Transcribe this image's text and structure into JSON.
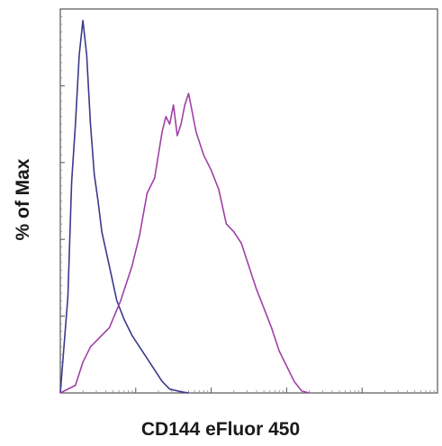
{
  "chart_data": {
    "type": "line",
    "title": "",
    "xlabel": "CD144 eFluor 450",
    "ylabel": "% of Max",
    "x_scale": "log",
    "xlim": [
      0,
      1
    ],
    "ylim": [
      0,
      100
    ],
    "grid": false,
    "legend": "none",
    "series": [
      {
        "color": "#3a3a8c",
        "x": [
          0.0,
          0.02,
          0.03,
          0.04,
          0.05,
          0.06,
          0.07,
          0.08,
          0.09,
          0.1,
          0.11,
          0.13,
          0.15,
          0.17,
          0.19,
          0.21,
          0.23,
          0.25,
          0.27,
          0.29,
          0.32,
          0.34
        ],
        "y": [
          0,
          25,
          55,
          70,
          88,
          97,
          88,
          70,
          57,
          50,
          42,
          33,
          24,
          19,
          15,
          12,
          9,
          6,
          3,
          1,
          0.3,
          0
        ]
      },
      {
        "color": "#a040a8",
        "x": [
          0.0,
          0.04,
          0.06,
          0.08,
          0.1,
          0.13,
          0.16,
          0.19,
          0.21,
          0.23,
          0.25,
          0.26,
          0.27,
          0.28,
          0.29,
          0.3,
          0.31,
          0.32,
          0.33,
          0.34,
          0.36,
          0.38,
          0.4,
          0.42,
          0.44,
          0.46,
          0.48,
          0.5,
          0.52,
          0.54,
          0.56,
          0.58,
          0.6,
          0.62,
          0.64,
          0.66
        ],
        "y": [
          0,
          2,
          8,
          12,
          14,
          17,
          24,
          33,
          41,
          52,
          56,
          62,
          68,
          72,
          70,
          75,
          67,
          70,
          75,
          78,
          68,
          62,
          58,
          53,
          44,
          42,
          39,
          33,
          27,
          22,
          17,
          11,
          7,
          3,
          0.5,
          0
        ]
      }
    ]
  }
}
